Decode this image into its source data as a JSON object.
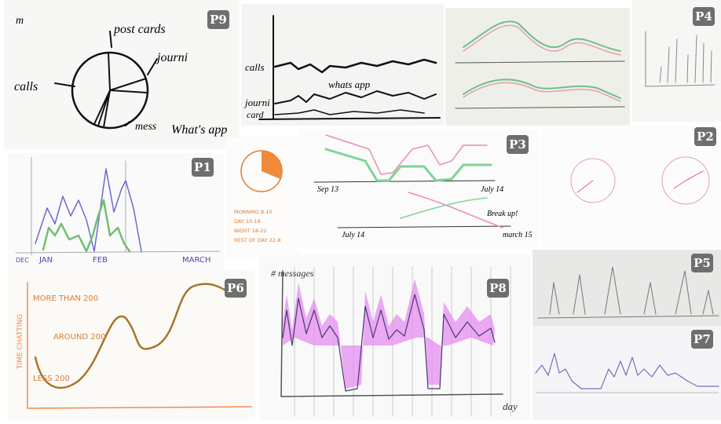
{
  "panels": [
    {
      "label": "P9",
      "texts": [
        "m",
        "post cards",
        "journi",
        "calls",
        "mess",
        "What's app"
      ]
    },
    {
      "texts": [
        "calls",
        "whats app",
        "journi",
        "card"
      ]
    },
    {
      "label": "P4"
    },
    {
      "label": "P1",
      "texts": [
        "DEC",
        "JAN",
        "FEB",
        "MARCH"
      ]
    },
    {
      "texts": [
        "MORNING 8-10",
        "DAY 10-18",
        "NIGHT 18-22",
        "REST OF DAY 22-8"
      ]
    },
    {
      "label": "P3",
      "texts": [
        "Sep 13",
        "July 14",
        "July 14",
        "march 15",
        "Break up!"
      ]
    },
    {
      "label": "P2"
    },
    {
      "label": "P6",
      "texts": [
        "TIME CHATTING",
        "MORE THAN 200",
        "AROUND 200",
        "LESS 200"
      ]
    },
    {
      "label": "P8",
      "texts": [
        "# messages",
        "day"
      ]
    },
    {
      "label": "P5"
    },
    {
      "label": "P7"
    }
  ]
}
